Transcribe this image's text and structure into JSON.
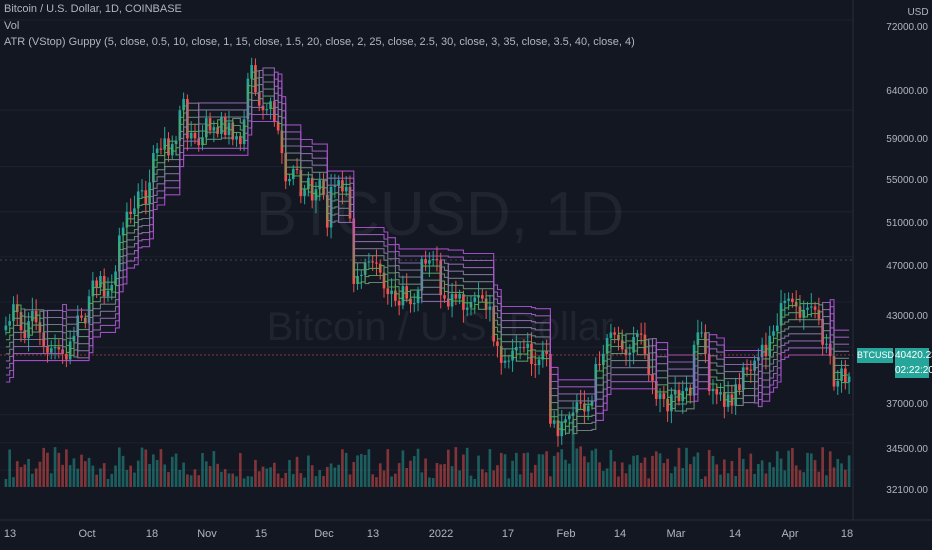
{
  "header": {
    "symbol_line": "Bitcoin / U.S. Dollar, 1D, COINBASE",
    "vol_label": "Vol",
    "indicator_line": "ATR (VStop) Guppy (5, close, 0.5, 10, close, 1, 15, close, 1.5, 20, close, 2, 25, close, 2.5, 30, close, 3, 35, close, 3.5, 40, close, 4)"
  },
  "watermark": {
    "ticker": "BTCUSD, 1D",
    "name": "Bitcoin / U.S. Dollar"
  },
  "price_axis": {
    "currency": "USD",
    "labels": [
      "72000.00",
      "64000.00",
      "59000.00",
      "55000.00",
      "51000.00",
      "47000.00",
      "43000.00",
      "37000.00",
      "34500.00",
      "32100.00"
    ]
  },
  "time_axis": {
    "labels": [
      "13",
      "Oct",
      "18",
      "Nov",
      "15",
      "Dec",
      "13",
      "2022",
      "17",
      "Feb",
      "14",
      "Mar",
      "14",
      "Apr",
      "18"
    ]
  },
  "last_price": {
    "symbol": "BTCUSD",
    "price": "40420.23",
    "countdown": "02:22:20"
  },
  "colors": {
    "background": "#131722",
    "up": "#26a69a",
    "down": "#ef5350",
    "stop_low": "#4caf50",
    "stop_high": "#b052d6"
  },
  "chart_data": {
    "type": "candlestick",
    "ylim": [
      32100,
      72000
    ],
    "x_tick_labels": [
      "13",
      "Oct",
      "18",
      "Nov",
      "15",
      "Dec",
      "13",
      "2022",
      "17",
      "Feb",
      "14",
      "Mar",
      "14",
      "Apr",
      "18"
    ],
    "close": [
      44900,
      45300,
      46800,
      46100,
      44500,
      43800,
      45300,
      46200,
      45200,
      44300,
      43100,
      42500,
      42900,
      43000,
      42800,
      42400,
      41900,
      43500,
      44000,
      45800,
      45600,
      45100,
      47500,
      48900,
      48300,
      49300,
      47500,
      48000,
      48500,
      49700,
      52900,
      53600,
      55000,
      54800,
      55300,
      56800,
      56900,
      55700,
      57600,
      60200,
      60600,
      60500,
      61500,
      60000,
      61000,
      61300,
      64000,
      65000,
      61500,
      62000,
      61500,
      60900,
      61600,
      63300,
      62200,
      62500,
      61900,
      63400,
      61800,
      62900,
      61400,
      61700,
      61000,
      63200,
      66800,
      68000,
      65600,
      64400,
      64000,
      64100,
      64800,
      63000,
      62200,
      60200,
      57700,
      57900,
      58800,
      58700,
      56400,
      57000,
      58000,
      56000,
      57000,
      57800,
      56500,
      53600,
      57200,
      57300,
      57800,
      56800,
      57200,
      54400,
      48600,
      49300,
      49400,
      50500,
      50600,
      50500,
      50400,
      49600,
      48200,
      47700,
      48000,
      47100,
      46700,
      48400,
      47300,
      46800,
      46900,
      48000,
      50800,
      50400,
      50700,
      50800,
      50700,
      47600,
      47300,
      46600,
      47700,
      47300,
      47700,
      46300,
      46500,
      47000,
      47400,
      47600,
      47300,
      46300,
      46600,
      43500,
      43100,
      41600,
      41800,
      41800,
      42700,
      43000,
      43000,
      42900,
      43300,
      41500,
      41400,
      41900,
      42600,
      42400,
      36200,
      36500,
      35100,
      36300,
      36600,
      36900,
      37200,
      38100,
      38000,
      37300,
      37800,
      38200,
      41500,
      41400,
      42400,
      43800,
      44300,
      44100,
      43600,
      42800,
      42300,
      42500,
      43900,
      44200,
      44100,
      42400,
      40600,
      40000,
      38400,
      38900,
      38400,
      37300,
      38800,
      39200,
      38200,
      39100,
      39400,
      38700,
      43200,
      44300,
      44300,
      42400,
      39100,
      39300,
      38800,
      39000,
      37700,
      38800,
      37800,
      39700,
      39200,
      41200,
      41000,
      40900,
      41800,
      42100,
      43200,
      42200,
      44000,
      44400,
      44900,
      46900,
      47100,
      47300,
      47000,
      46600,
      45600,
      46300,
      46500,
      46600,
      46300,
      45500,
      43200,
      43300,
      42200,
      39500,
      40000,
      41100,
      39900,
      40400
    ],
    "series": [
      {
        "name": "",
        "values": []
      }
    ]
  }
}
